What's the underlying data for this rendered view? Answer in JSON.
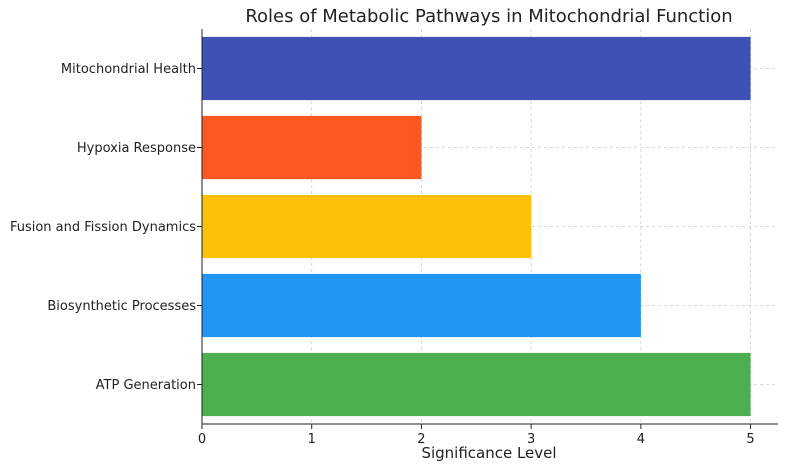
{
  "chart_data": {
    "type": "bar",
    "orientation": "horizontal",
    "title": "Roles of Metabolic Pathways in Mitochondrial Function",
    "xlabel": "Significance Level",
    "ylabel": "",
    "categories": [
      "ATP Generation",
      "Biosynthetic Processes",
      "Fusion and Fission Dynamics",
      "Hypoxia Response",
      "Mitochondrial Health"
    ],
    "values": [
      5,
      4,
      3,
      2,
      5
    ],
    "colors": [
      "#4caf50",
      "#2196f3",
      "#ffc107",
      "#ff5722",
      "#3f51b5"
    ],
    "xlim": [
      0,
      5.25
    ],
    "xticks": [
      0,
      1,
      2,
      3,
      4,
      5
    ],
    "grid": true,
    "legend": false
  }
}
